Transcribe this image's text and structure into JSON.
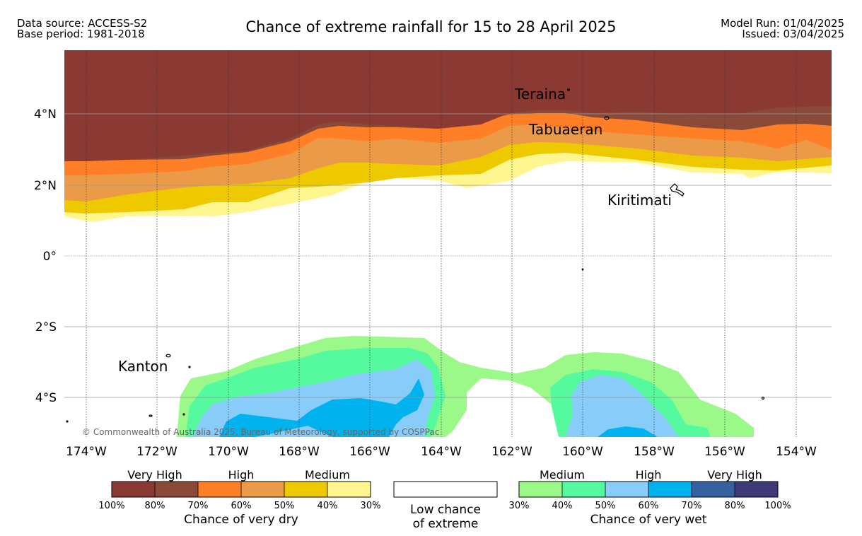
{
  "header": {
    "data_source": "Data source: ACCESS-S2",
    "base_period": "Base period: 1981-2018",
    "title": "Chance of extreme rainfall for 15 to 28 April 2025",
    "model_run": "Model Run: 01/04/2025",
    "issued": "Issued: 03/04/2025"
  },
  "map": {
    "lon_labels": [
      "174°W",
      "172°W",
      "170°W",
      "168°W",
      "166°W",
      "164°W",
      "162°W",
      "160°W",
      "158°W",
      "156°W",
      "154°W"
    ],
    "lat_labels": [
      "4°N",
      "2°N",
      "0°",
      "2°S",
      "4°S"
    ],
    "places": [
      {
        "name": "Teraina"
      },
      {
        "name": "Tabuaeran"
      },
      {
        "name": "Kiritimati"
      },
      {
        "name": "Kanton"
      }
    ],
    "copyright": "© Commonwealth of Australia 2025, Bureau of Meteorology, supported by COSPPac"
  },
  "legend": {
    "dry": {
      "groups": [
        "Very High",
        "High",
        "Medium"
      ],
      "colors": [
        "#8b3a33",
        "#8a4a3a",
        "#ff7f27",
        "#eb9a48",
        "#eec900",
        "#fff68f"
      ],
      "ticks": [
        "100%",
        "80%",
        "70%",
        "60%",
        "50%",
        "40%",
        "30%"
      ],
      "label": "Chance of very dry"
    },
    "low": {
      "line1": "Low chance",
      "line2": "of extreme"
    },
    "wet": {
      "groups": [
        "Medium",
        "High",
        "Very High"
      ],
      "colors": [
        "#9bf98a",
        "#55fa9f",
        "#88ccfa",
        "#00b3ee",
        "#3561a0",
        "#3f3b79"
      ],
      "ticks": [
        "30%",
        "40%",
        "50%",
        "60%",
        "70%",
        "80%",
        "100%"
      ],
      "label": "Chance of very wet"
    }
  }
}
